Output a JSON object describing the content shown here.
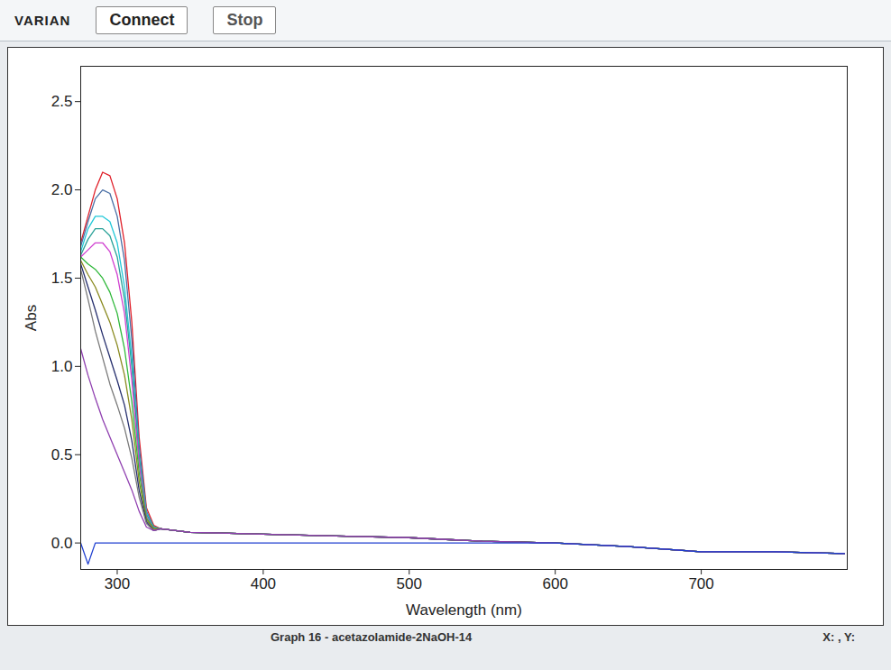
{
  "chart_data": {
    "type": "line",
    "title": "Graph 16 - acetazolamide-2NaOH-14",
    "header_texts": [
      "VARIAN",
      "Connect",
      "Stop"
    ],
    "status_text": "X: , Y:",
    "x_label": "Wavelength (nm)",
    "y_label": "Abs",
    "x": [
      275,
      280,
      285,
      290,
      295,
      300,
      305,
      310,
      315,
      320,
      325,
      330,
      350,
      400,
      450,
      500,
      550,
      600,
      650,
      700,
      750,
      798
    ],
    "series": [
      {
        "color": "#e0202a",
        "values": [
          1.7,
          1.85,
          2.0,
          2.1,
          2.08,
          1.95,
          1.7,
          1.25,
          0.6,
          0.2,
          0.1,
          0.08,
          0.06,
          0.05,
          0.04,
          0.03,
          0.01,
          0.0,
          -0.02,
          -0.05,
          -0.05,
          -0.06
        ]
      },
      {
        "color": "#4a6fa5",
        "values": [
          1.68,
          1.82,
          1.95,
          2.0,
          1.98,
          1.85,
          1.6,
          1.15,
          0.55,
          0.18,
          0.09,
          0.08,
          0.06,
          0.05,
          0.04,
          0.03,
          0.01,
          0.0,
          -0.02,
          -0.05,
          -0.05,
          -0.06
        ]
      },
      {
        "color": "#22c8d8",
        "values": [
          1.65,
          1.78,
          1.85,
          1.85,
          1.82,
          1.7,
          1.45,
          1.05,
          0.5,
          0.17,
          0.09,
          0.08,
          0.06,
          0.05,
          0.04,
          0.03,
          0.01,
          0.0,
          -0.02,
          -0.05,
          -0.05,
          -0.06
        ]
      },
      {
        "color": "#2aa198",
        "values": [
          1.63,
          1.72,
          1.78,
          1.78,
          1.74,
          1.62,
          1.38,
          1.0,
          0.48,
          0.16,
          0.09,
          0.08,
          0.06,
          0.05,
          0.04,
          0.03,
          0.01,
          0.0,
          -0.02,
          -0.05,
          -0.05,
          -0.06
        ]
      },
      {
        "color": "#d040d0",
        "values": [
          1.62,
          1.66,
          1.7,
          1.7,
          1.65,
          1.52,
          1.3,
          0.92,
          0.45,
          0.15,
          0.08,
          0.08,
          0.06,
          0.05,
          0.04,
          0.03,
          0.01,
          0.0,
          -0.02,
          -0.05,
          -0.05,
          -0.06
        ]
      },
      {
        "color": "#2fb83a",
        "values": [
          1.62,
          1.58,
          1.55,
          1.5,
          1.42,
          1.3,
          1.1,
          0.8,
          0.4,
          0.14,
          0.08,
          0.08,
          0.06,
          0.05,
          0.04,
          0.03,
          0.01,
          0.0,
          -0.02,
          -0.05,
          -0.05,
          -0.06
        ]
      },
      {
        "color": "#8a8a20",
        "values": [
          1.6,
          1.52,
          1.45,
          1.35,
          1.25,
          1.12,
          0.95,
          0.7,
          0.35,
          0.13,
          0.08,
          0.08,
          0.06,
          0.05,
          0.04,
          0.03,
          0.01,
          0.0,
          -0.02,
          -0.05,
          -0.05,
          -0.06
        ]
      },
      {
        "color": "#27306e",
        "values": [
          1.58,
          1.45,
          1.32,
          1.18,
          1.05,
          0.92,
          0.78,
          0.58,
          0.3,
          0.12,
          0.07,
          0.08,
          0.06,
          0.05,
          0.04,
          0.03,
          0.01,
          0.0,
          -0.02,
          -0.05,
          -0.05,
          -0.06
        ]
      },
      {
        "color": "#7a7a7a",
        "values": [
          1.55,
          1.38,
          1.2,
          1.05,
          0.9,
          0.78,
          0.65,
          0.48,
          0.26,
          0.11,
          0.07,
          0.08,
          0.06,
          0.05,
          0.04,
          0.03,
          0.01,
          0.0,
          -0.02,
          -0.05,
          -0.05,
          -0.06
        ]
      },
      {
        "color": "#9040b0",
        "values": [
          1.1,
          0.95,
          0.82,
          0.7,
          0.6,
          0.5,
          0.4,
          0.3,
          0.18,
          0.09,
          0.07,
          0.08,
          0.06,
          0.05,
          0.04,
          0.03,
          0.01,
          0.0,
          -0.02,
          -0.05,
          -0.05,
          -0.06
        ]
      },
      {
        "color": "#1f3fd0",
        "values": [
          0.0,
          -0.12,
          0.0,
          0.0,
          0.0,
          0.0,
          0.0,
          0.0,
          0.0,
          0.0,
          0.0,
          0.0,
          0.0,
          0.0,
          0.0,
          0.0,
          0.0,
          0.0,
          -0.02,
          -0.05,
          -0.05,
          -0.06
        ]
      }
    ],
    "xlim": [
      275,
      800
    ],
    "ylim": [
      -0.15,
      2.7
    ],
    "xticks": [
      300,
      400,
      500,
      600,
      700
    ],
    "yticks": [
      {
        "value": 0,
        "label": "0.0"
      },
      0.5,
      {
        "value": 1,
        "label": "1.0"
      },
      1.5,
      {
        "value": 2,
        "label": "2.0"
      },
      2.5
    ],
    "grid": false
  }
}
